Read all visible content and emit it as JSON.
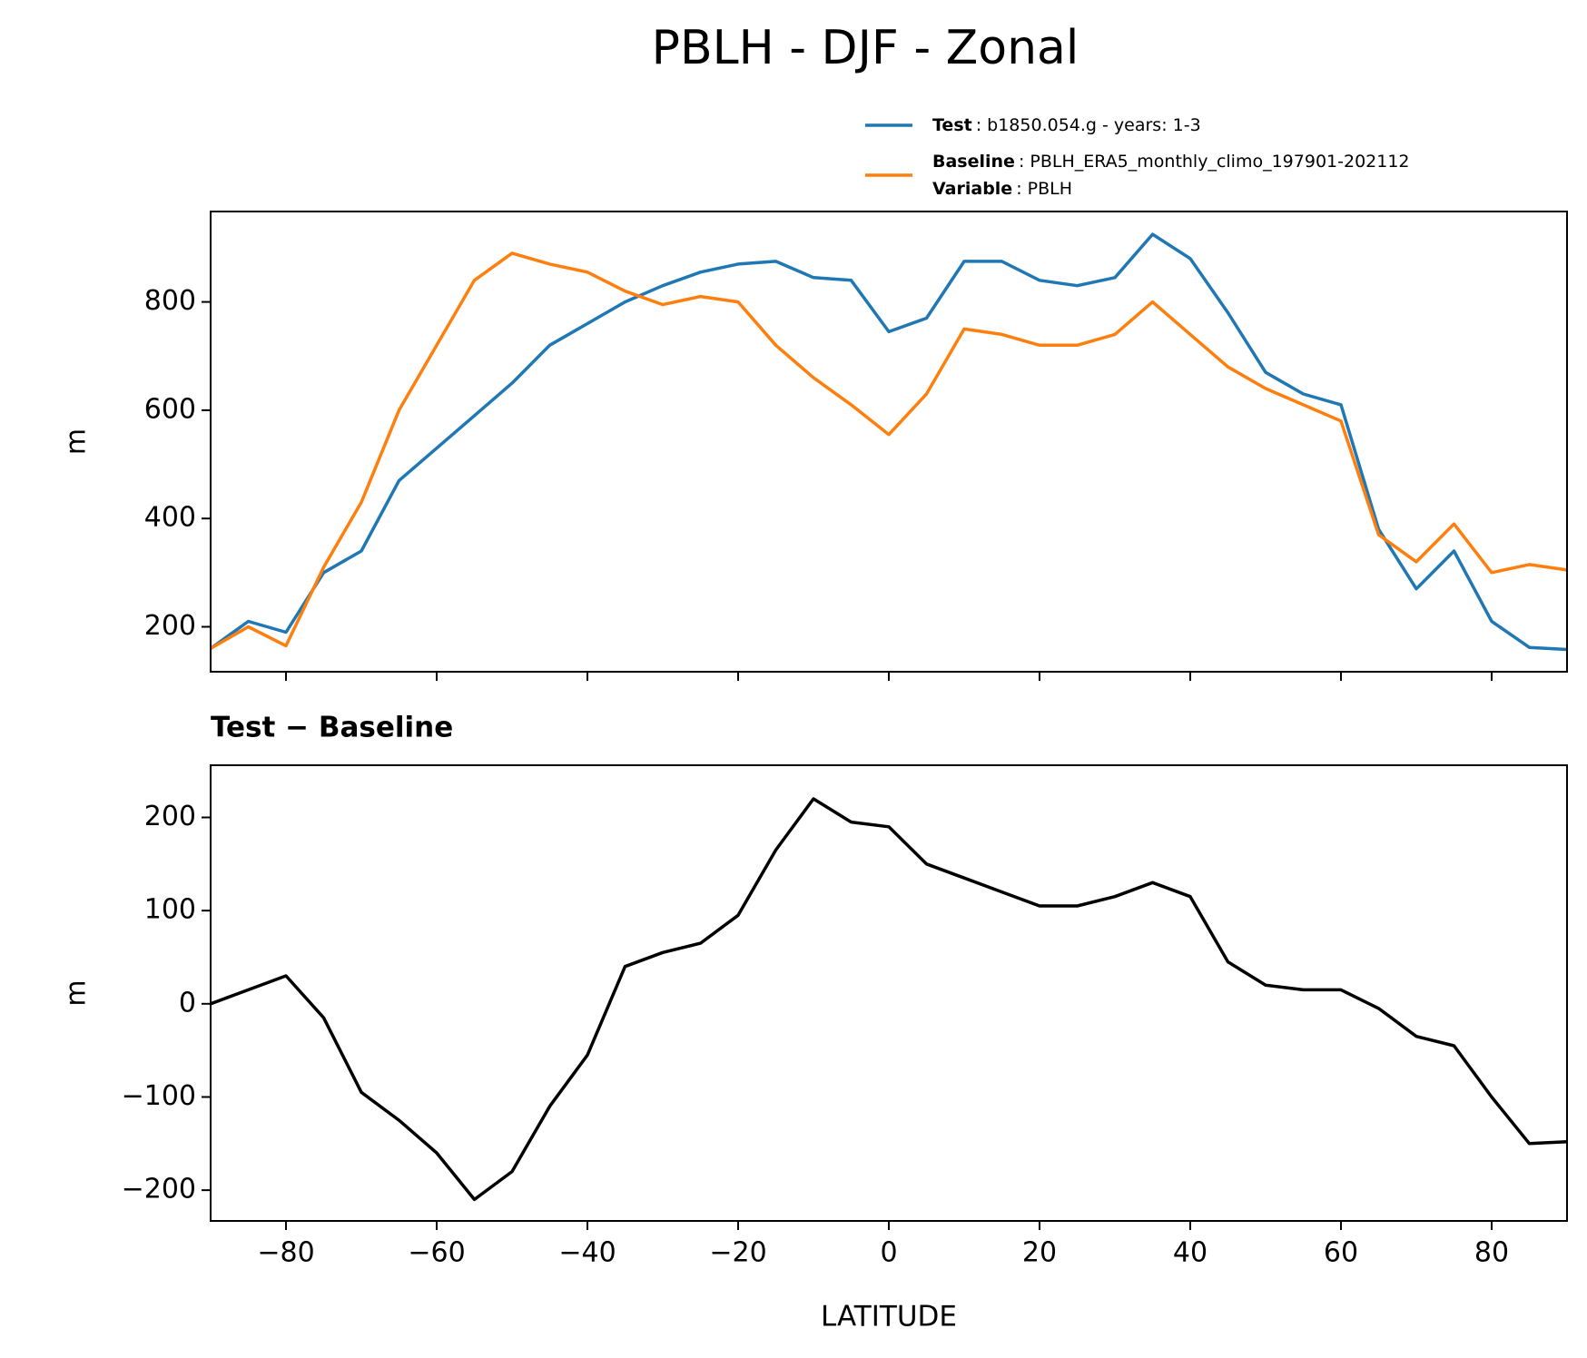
{
  "chart_data": [
    {
      "type": "line",
      "title": "PBLH - DJF - Zonal",
      "ylabel": "m",
      "x": [
        -90,
        -85,
        -80,
        -75,
        -70,
        -65,
        -60,
        -55,
        -50,
        -45,
        -40,
        -35,
        -30,
        -25,
        -20,
        -15,
        -10,
        -5,
        0,
        5,
        10,
        15,
        20,
        25,
        30,
        35,
        40,
        45,
        50,
        55,
        60,
        65,
        70,
        75,
        80,
        85,
        90
      ],
      "series": [
        {
          "name": "Test",
          "description": ": b1850.054.g - years: 1-3",
          "color": "#1f77b4",
          "values": [
            160,
            210,
            190,
            300,
            340,
            470,
            530,
            590,
            650,
            720,
            760,
            800,
            830,
            855,
            870,
            875,
            845,
            840,
            745,
            770,
            875,
            875,
            840,
            830,
            845,
            925,
            880,
            780,
            670,
            630,
            610,
            380,
            270,
            340,
            210,
            162,
            158
          ]
        },
        {
          "name": "Baseline",
          "description": ": PBLH_ERA5_monthly_climo_197901-202112",
          "color": "#ff7f0e",
          "values": [
            160,
            200,
            165,
            310,
            430,
            600,
            720,
            840,
            890,
            870,
            855,
            820,
            795,
            810,
            800,
            720,
            660,
            610,
            555,
            630,
            750,
            740,
            720,
            720,
            740,
            800,
            740,
            680,
            640,
            610,
            580,
            370,
            320,
            390,
            300,
            315,
            305
          ]
        }
      ],
      "variable": {
        "name": "Variable",
        "description": ": PBLH"
      },
      "xlim": [
        -90,
        90
      ],
      "xticks": [
        -80,
        -60,
        -40,
        -20,
        0,
        20,
        40,
        60,
        80
      ],
      "ylim": [
        117,
        967
      ],
      "yticks": [
        200,
        400,
        600,
        800
      ]
    },
    {
      "type": "line",
      "title": "Test − Baseline",
      "ylabel": "m",
      "xlabel": "LATITUDE",
      "x": [
        -90,
        -85,
        -80,
        -75,
        -70,
        -65,
        -60,
        -55,
        -50,
        -45,
        -40,
        -35,
        -30,
        -25,
        -20,
        -15,
        -10,
        -5,
        0,
        5,
        10,
        15,
        20,
        25,
        30,
        35,
        40,
        45,
        50,
        55,
        60,
        65,
        70,
        75,
        80,
        85,
        90
      ],
      "series": [
        {
          "color": "#000000",
          "values": [
            0,
            15,
            30,
            -15,
            -95,
            -125,
            -160,
            -210,
            -180,
            -110,
            -55,
            40,
            55,
            65,
            95,
            165,
            220,
            195,
            190,
            150,
            135,
            120,
            105,
            105,
            115,
            130,
            115,
            45,
            20,
            15,
            15,
            -5,
            -35,
            -45,
            -100,
            -150,
            -148
          ]
        }
      ],
      "xlim": [
        -90,
        90
      ],
      "xticks": [
        {
          "value": -80,
          "label": "−80"
        },
        {
          "value": -60,
          "label": "−60"
        },
        {
          "value": -40,
          "label": "−40"
        },
        {
          "value": -20,
          "label": "−20"
        },
        0,
        20,
        40,
        60,
        80
      ],
      "ylim": [
        -233,
        256
      ],
      "yticks": [
        {
          "value": -200,
          "label": "−200"
        },
        {
          "value": -100,
          "label": "−100"
        },
        0,
        100,
        200
      ]
    }
  ]
}
